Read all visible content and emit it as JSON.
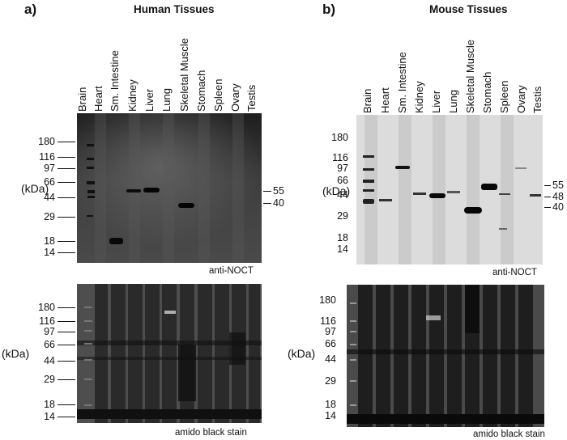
{
  "panels": {
    "a": {
      "letter": "a)",
      "title": "Human Tissues",
      "lanes": [
        "Brain",
        "Heart",
        "Sm. Intestine",
        "Kidney",
        "Liver",
        "Lung",
        "Skeletal Muscle",
        "Stomach",
        "Spleen",
        "Ovary",
        "Testis"
      ],
      "western_mw": [
        "180",
        "116",
        "97",
        "66",
        "44",
        "29",
        "18",
        "14"
      ],
      "western_right_mw": [
        "55",
        "40"
      ],
      "western_caption": "anti-NOCT",
      "stain_mw": [
        "180",
        "116",
        "97",
        "66",
        "44",
        "29",
        "18",
        "14"
      ],
      "stain_caption": "amido black stain",
      "kda_label": "(kDa)"
    },
    "b": {
      "letter": "b)",
      "title": "Mouse Tissues",
      "lanes": [
        "Brain",
        "Heart",
        "Sm. Intestine",
        "Kidney",
        "Liver",
        "Lung",
        "Skeletal Muscle",
        "Stomach",
        "Spleen",
        "Ovary",
        "Testis"
      ],
      "western_mw": [
        "180",
        "116",
        "97",
        "66",
        "44",
        "29",
        "18",
        "14"
      ],
      "western_right_mw": [
        "55",
        "48",
        "40"
      ],
      "western_caption": "anti-NOCT",
      "stain_mw": [
        "180",
        "116",
        "97",
        "66",
        "44",
        "29",
        "18",
        "14"
      ],
      "stain_caption": "amido black stain",
      "kda_label": "(kDa)"
    }
  },
  "colors": {
    "blot_dark": "#2a2a2a",
    "blot_light": "#d8d8d8",
    "stain_bg": "#3a3a3a"
  }
}
